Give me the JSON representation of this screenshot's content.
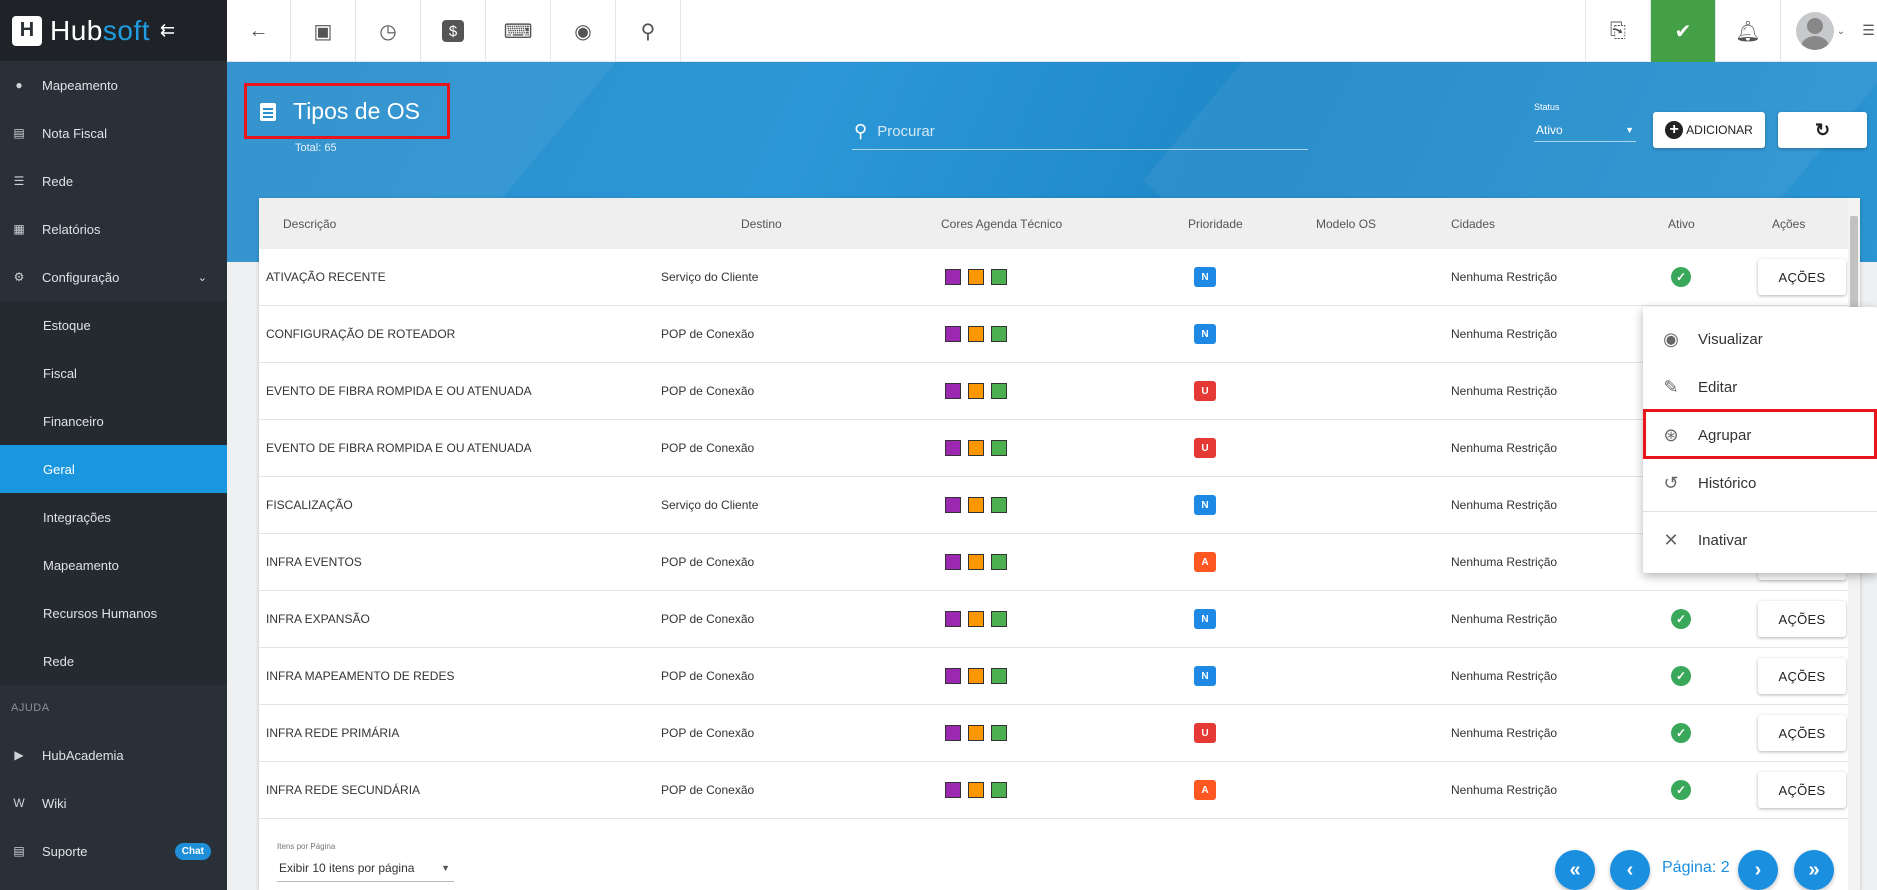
{
  "brand": {
    "logo_letter": "H",
    "name_part1": "Hub",
    "name_part2": "soft",
    "collapse_icon": "collapse-icon"
  },
  "sidebar": {
    "items": [
      {
        "label": "Mapeamento",
        "icon": "map-pin-icon"
      },
      {
        "label": "Nota Fiscal",
        "icon": "receipt-icon"
      },
      {
        "label": "Rede",
        "icon": "server-icon"
      },
      {
        "label": "Relatórios",
        "icon": "report-icon"
      },
      {
        "label": "Configuração",
        "icon": "gear-icon"
      }
    ],
    "sub_items": [
      {
        "label": "Estoque"
      },
      {
        "label": "Fiscal"
      },
      {
        "label": "Financeiro"
      },
      {
        "label": "Geral"
      },
      {
        "label": "Integrações"
      },
      {
        "label": "Mapeamento"
      },
      {
        "label": "Recursos Humanos"
      },
      {
        "label": "Rede"
      }
    ],
    "help_section": "AJUDA",
    "help_items": [
      {
        "label": "HubAcademia",
        "icon": "youtube-icon"
      },
      {
        "label": "Wiki",
        "icon": "wikipedia-icon"
      },
      {
        "label": "Suporte",
        "icon": "support-icon",
        "badge": "Chat"
      }
    ]
  },
  "topbar": {
    "left_icons": [
      "back-arrow-icon",
      "contact-card-icon",
      "calendar-clock-icon",
      "dollar-icon",
      "terminal-icon",
      "eye-icon",
      "search-icon"
    ],
    "right_icons": [
      "pdf-icon",
      "chat-check-icon",
      "bell-icon"
    ]
  },
  "header": {
    "title": "Tipos de OS",
    "total": "Total: 65",
    "search_placeholder": "Procurar",
    "status_label": "Status",
    "status_value": "Ativo",
    "add_label": "ADICIONAR"
  },
  "table": {
    "columns": [
      "Descrição",
      "Destino",
      "Cores Agenda Técnico",
      "Prioridade",
      "Modelo OS",
      "Cidades",
      "Ativo",
      "Ações"
    ],
    "swatch_colors": [
      "#9c27b0",
      "#ff9800",
      "#4caf50"
    ],
    "priority_colors": {
      "N": "#1e88e5",
      "U": "#e53935",
      "A": "#ff5722"
    },
    "action_label": "AÇÕES",
    "rows": [
      {
        "descricao": "ATIVAÇÃO RECENTE",
        "destino": "Serviço do Cliente",
        "prioridade": "N",
        "cidades": "Nenhuma Restrição",
        "ativo": true
      },
      {
        "descricao": "CONFIGURAÇÃO DE ROTEADOR",
        "destino": "POP de Conexão",
        "prioridade": "N",
        "cidades": "Nenhuma Restrição",
        "ativo": true
      },
      {
        "descricao": "EVENTO DE FIBRA ROMPIDA E OU ATENUADA",
        "destino": "POP de Conexão",
        "prioridade": "U",
        "cidades": "Nenhuma Restrição",
        "ativo": true
      },
      {
        "descricao": "EVENTO DE FIBRA ROMPIDA E OU ATENUADA",
        "destino": "POP de Conexão",
        "prioridade": "U",
        "cidades": "Nenhuma Restrição",
        "ativo": true
      },
      {
        "descricao": "FISCALIZAÇÃO",
        "destino": "Serviço do Cliente",
        "prioridade": "N",
        "cidades": "Nenhuma Restrição",
        "ativo": true
      },
      {
        "descricao": "INFRA EVENTOS",
        "destino": "POP de Conexão",
        "prioridade": "A",
        "cidades": "Nenhuma Restrição",
        "ativo": true
      },
      {
        "descricao": "INFRA EXPANSÃO",
        "destino": "POP de Conexão",
        "prioridade": "N",
        "cidades": "Nenhuma Restrição",
        "ativo": true
      },
      {
        "descricao": "INFRA MAPEAMENTO DE REDES",
        "destino": "POP de Conexão",
        "prioridade": "N",
        "cidades": "Nenhuma Restrição",
        "ativo": true
      },
      {
        "descricao": "INFRA REDE PRIMÁRIA",
        "destino": "POP de Conexão",
        "prioridade": "U",
        "cidades": "Nenhuma Restrição",
        "ativo": true
      },
      {
        "descricao": "INFRA REDE SECUNDÁRIA",
        "destino": "POP de Conexão",
        "prioridade": "A",
        "cidades": "Nenhuma Restrição",
        "ativo": true
      }
    ]
  },
  "pagination": {
    "per_page_label": "Itens por Página",
    "per_page_value": "Exibir 10 itens por página",
    "page_label": "Página: 2"
  },
  "actions_menu": {
    "items": [
      {
        "label": "Visualizar",
        "icon": "eye-icon"
      },
      {
        "label": "Editar",
        "icon": "pencil-icon"
      },
      {
        "label": "Agrupar",
        "icon": "group-icon"
      },
      {
        "label": "Histórico",
        "icon": "history-icon"
      },
      {
        "label": "Inativar",
        "icon": "close-icon"
      }
    ]
  },
  "highlight_color": "#e8151b",
  "accent_color": "#1a96de"
}
